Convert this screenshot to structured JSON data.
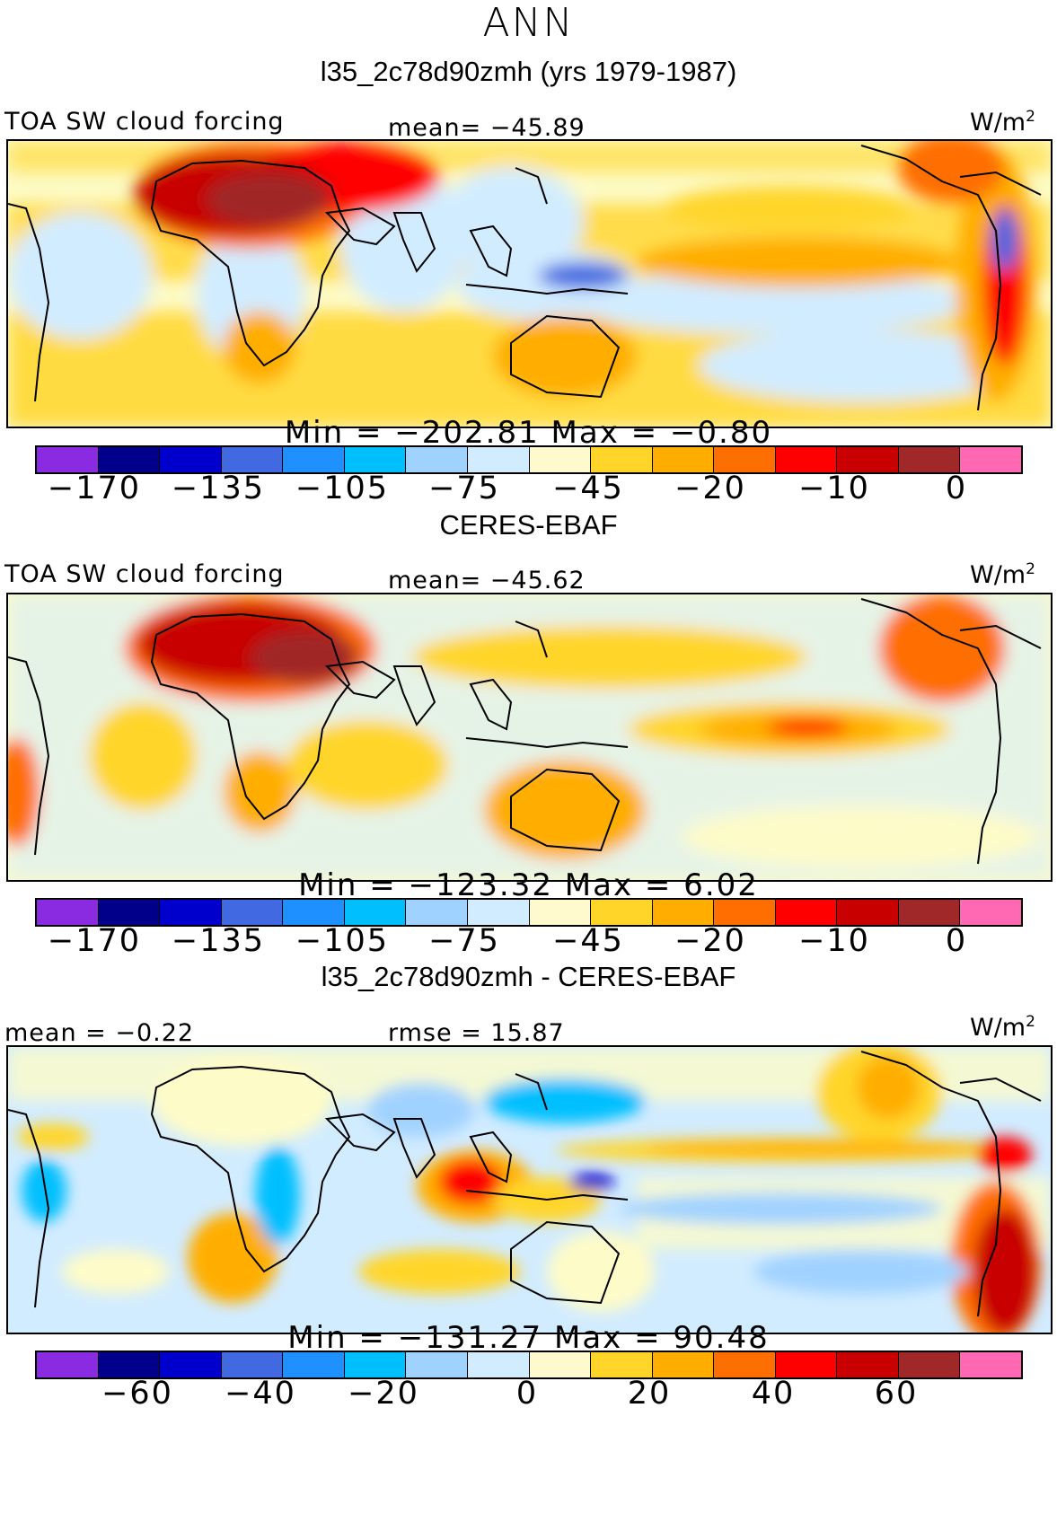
{
  "figure_title": "ANN",
  "palette": [
    "#8a2be2",
    "#00008b",
    "#0000cd",
    "#4169e1",
    "#1e90ff",
    "#00bfff",
    "#a0d2ff",
    "#d2ecff",
    "#fffacd",
    "#ffd52a",
    "#ffae00",
    "#ff6e00",
    "#ff0000",
    "#c80000",
    "#a02828",
    "#ff69b4"
  ],
  "panels": [
    {
      "title": "l35_2c78d90zmh (yrs 1979-1987)",
      "left_label": "TOA SW cloud forcing",
      "center_label": "mean= -45.89",
      "units": "W/m",
      "units_exp": "2",
      "minmax": "Min = -202.81  Max =   -0.80",
      "ticks": [
        "-170",
        "-135",
        "-105",
        "-75",
        "-45",
        "-20",
        "-10",
        "0"
      ]
    },
    {
      "title": "CERES-EBAF",
      "left_label": "TOA SW cloud forcing",
      "center_label": "mean= -45.62",
      "units": "W/m",
      "units_exp": "2",
      "minmax": "Min = -123.32  Max =    6.02",
      "ticks": [
        "-170",
        "-135",
        "-105",
        "-75",
        "-45",
        "-20",
        "-10",
        "0"
      ]
    },
    {
      "title": "l35_2c78d90zmh - CERES-EBAF",
      "left_label": "mean =   -0.22",
      "center_label": "rmse =   15.87",
      "units": "W/m",
      "units_exp": "2",
      "minmax": "Min = -131.27  Max =   90.48",
      "ticks": [
        "-60",
        "-40",
        "-20",
        "0",
        "20",
        "40",
        "60"
      ]
    }
  ]
}
